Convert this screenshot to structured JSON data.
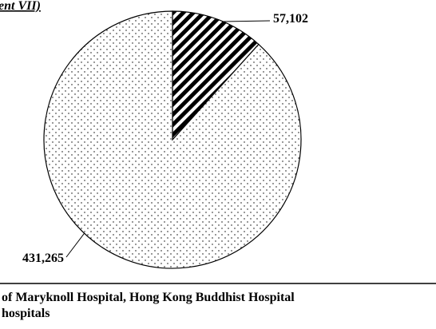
{
  "chart_data": {
    "type": "pie",
    "title": "ent VII)",
    "categories": [
      null,
      null
    ],
    "values": [
      57102,
      431265
    ],
    "value_labels": [
      "57,102",
      "431,265"
    ],
    "notes": [
      "of Maryknoll Hospital, Hong Kong Buddhist Hospital",
      "hospitals"
    ]
  }
}
